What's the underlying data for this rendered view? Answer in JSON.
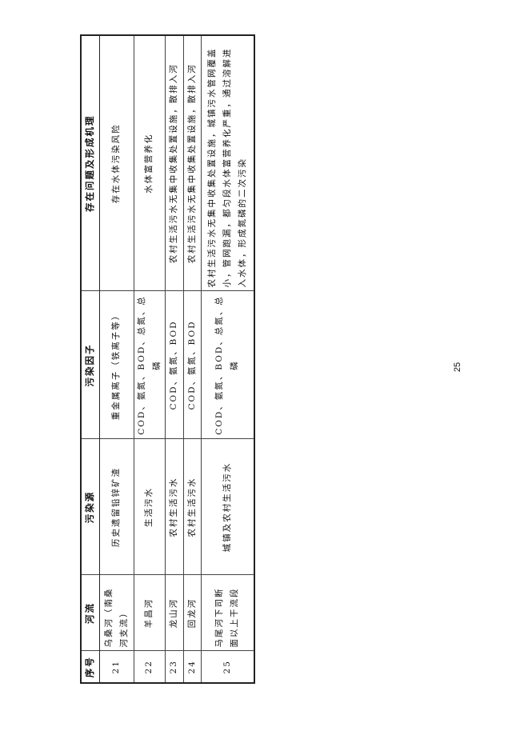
{
  "table": {
    "headers": [
      "序号",
      "河流",
      "污染源",
      "污染因子",
      "存在问题及形成机理"
    ],
    "rows": [
      [
        "21",
        "乌桑河（南桑河支流）",
        "历史遗留铅锌矿渣",
        "重金属离子（铁离子等）",
        "存在水体污染风险"
      ],
      [
        "22",
        "羊昌河",
        "生活污水",
        "COD、氨氮、BOD、总氮、总磷",
        "水体富营养化"
      ],
      [
        "23",
        "龙山河",
        "农村生活污水",
        "COD、氨氮、BOD",
        "农村生活污水无集中收集处置设施，散排入河"
      ],
      [
        "24",
        "回龙河",
        "农村生活污水",
        "COD、氨氮、BOD",
        "农村生活污水无集中收集处置设施，散排入河"
      ],
      [
        "25",
        "马尾河下司断面以上干流段",
        "城镇及农村生活污水",
        "COD、氨氮、BOD、总氮、总磷",
        "农村生活污水无集中收集处置设施，城镇污水管网覆盖小，管网跑漏，都匀段水体富营养化严重，通过溶解进入水体，形成氮磷的二次污染"
      ]
    ]
  },
  "page_number": "25"
}
